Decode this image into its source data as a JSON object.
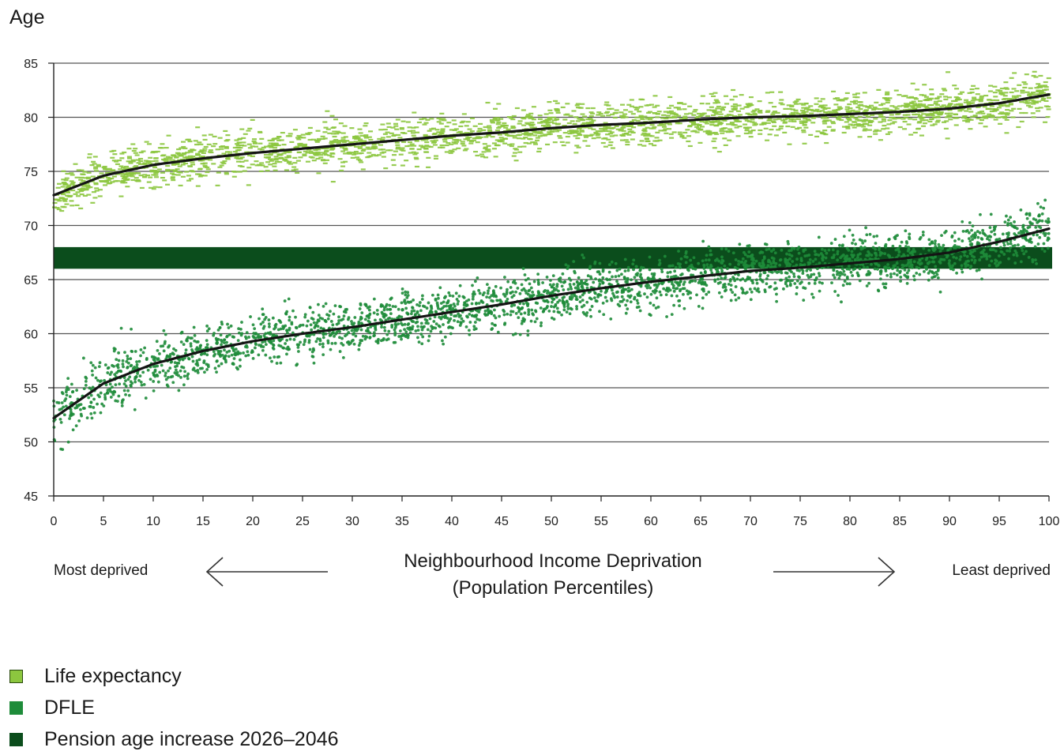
{
  "chart_data": {
    "type": "scatter",
    "ylabel": "Age",
    "xlabel_line1": "Neighbourhood Income Deprivation",
    "xlabel_line2": "(Population Percentiles)",
    "left_annotation": "Most deprived",
    "right_annotation": "Least deprived",
    "xlim": [
      0,
      100
    ],
    "ylim": [
      45,
      85
    ],
    "xticks": [
      0,
      5,
      10,
      15,
      20,
      25,
      30,
      35,
      40,
      45,
      50,
      55,
      60,
      65,
      70,
      75,
      80,
      85,
      90,
      95,
      100
    ],
    "yticks": [
      45,
      50,
      55,
      60,
      65,
      70,
      75,
      80,
      85
    ],
    "grid": true,
    "legend_position": "bottom-left",
    "series": [
      {
        "name": "Life expectancy",
        "color": "#8cc63f",
        "marker": "dash",
        "trend": {
          "x": [
            0,
            5,
            10,
            15,
            20,
            25,
            30,
            35,
            40,
            45,
            50,
            55,
            60,
            65,
            70,
            75,
            80,
            85,
            90,
            95,
            100
          ],
          "y": [
            72.8,
            74.6,
            75.6,
            76.2,
            76.7,
            77.1,
            77.5,
            77.9,
            78.3,
            78.6,
            79.0,
            79.3,
            79.5,
            79.8,
            80.0,
            80.1,
            80.3,
            80.5,
            80.8,
            81.3,
            82.1
          ]
        }
      },
      {
        "name": "DFLE",
        "color": "#1e8c3a",
        "marker": "dot",
        "trend": {
          "x": [
            0,
            5,
            10,
            15,
            20,
            25,
            30,
            35,
            40,
            45,
            50,
            55,
            60,
            65,
            70,
            75,
            80,
            85,
            90,
            95,
            100
          ],
          "y": [
            52.2,
            55.4,
            57.2,
            58.4,
            59.3,
            60.0,
            60.6,
            61.3,
            62.0,
            62.7,
            63.5,
            64.2,
            64.8,
            65.3,
            65.8,
            66.1,
            66.5,
            66.9,
            67.5,
            68.5,
            69.7
          ]
        }
      },
      {
        "name": "Pension age increase 2026–2046",
        "color": "#0b4d1c",
        "marker": "band",
        "band": {
          "x": [
            0,
            100
          ],
          "y_from": 66,
          "y_to": 68
        }
      }
    ]
  }
}
